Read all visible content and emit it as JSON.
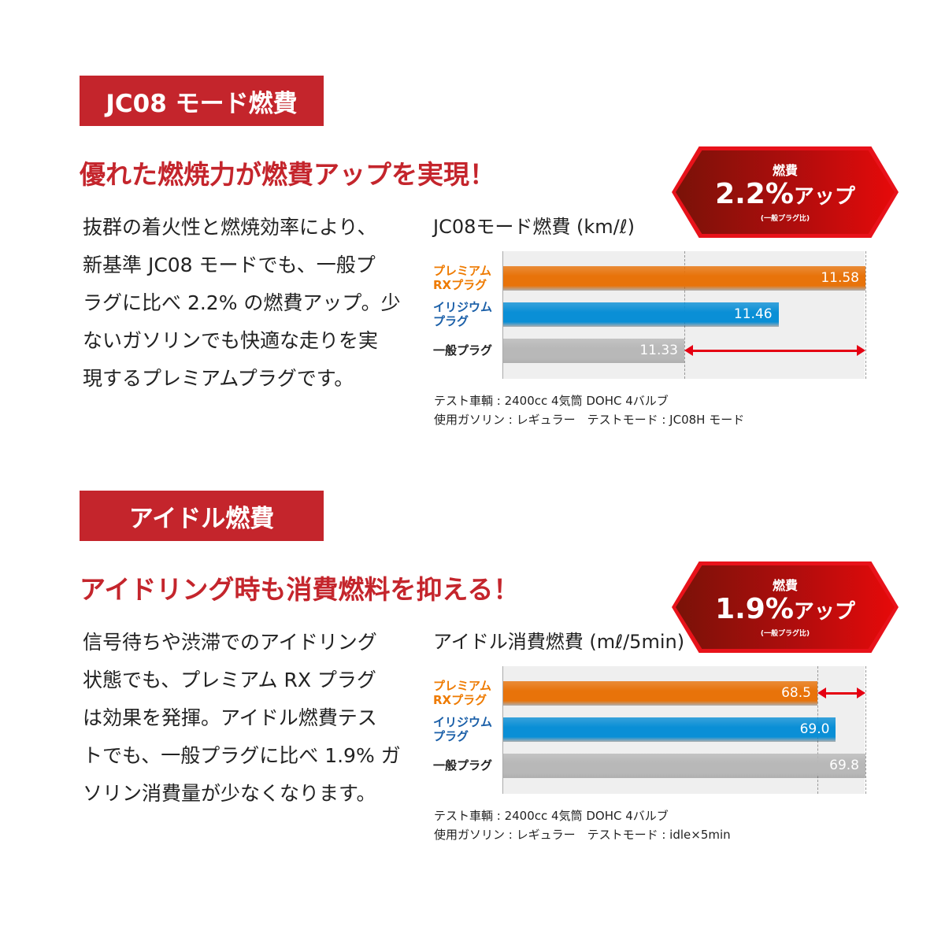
{
  "sections": [
    {
      "tag": "JC08 モード燃費",
      "headline": "優れた燃焼力が燃費アップを実現！",
      "paragraph_lines": [
        "抜群の着火性と燃焼効率により、",
        "新基準 JC08 モードでも、一般プ",
        "ラグに比べ 2.2% の燃費アップ。少",
        "ないガソリンでも快適な走りを実",
        "現するプレミアムプラグです。"
      ],
      "badge": {
        "top": "燃費",
        "value": "2.2%",
        "suffix": "アップ",
        "note": "(一般プラグ比)"
      },
      "notes": [
        "テスト車輌 : 2400cc 4気筒 DOHC 4バルブ",
        "使用ガソリン : レギュラー　テストモード : JC08H モード"
      ]
    },
    {
      "tag": "アイドル燃費",
      "headline": "アイドリング時も消費燃料を抑える！",
      "paragraph_lines": [
        "信号待ちや渋滞でのアイドリング",
        "状態でも、プレミアム RX プラグ",
        "は効果を発揮。アイドル燃費テス",
        "トでも、一般プラグに比べ 1.9% ガ",
        "ソリン消費量が少なくなります。"
      ],
      "badge": {
        "top": "燃費",
        "value": "1.9%",
        "suffix": "アップ",
        "note": "(一般プラグ比)"
      },
      "notes": [
        "テスト車輌 : 2400cc 4気筒 DOHC 4バルブ",
        "使用ガソリン : レギュラー　テストモード : idle×5min"
      ]
    }
  ],
  "chart_data": [
    {
      "type": "bar",
      "orientation": "horizontal",
      "title": "JC08モード燃費 (km/ℓ)",
      "categories": [
        [
          "プレミアム",
          "RXプラグ"
        ],
        [
          "イリジウム",
          "プラグ"
        ],
        [
          "一般プラグ"
        ]
      ],
      "values": [
        11.58,
        11.46,
        11.33
      ],
      "value_labels": [
        "11.58",
        "11.46",
        "11.33"
      ],
      "xlim": [
        11.08,
        11.58
      ],
      "reference": 11.33,
      "arrow": [
        11.33,
        11.58
      ],
      "colors": [
        "#e8730a",
        "#0a8fd6",
        "#b8b8b8"
      ],
      "label_colors": [
        "#ee7a00",
        "#1a5fa8",
        "#222222"
      ]
    },
    {
      "type": "bar",
      "orientation": "horizontal",
      "title": "アイドル消費燃費 (mℓ/5min)",
      "categories": [
        [
          "プレミアム",
          "RXプラグ"
        ],
        [
          "イリジウム",
          "プラグ"
        ],
        [
          "一般プラグ"
        ]
      ],
      "values": [
        68.5,
        69.0,
        69.8
      ],
      "value_labels": [
        "68.5",
        "69.0",
        "69.8"
      ],
      "xlim": [
        60,
        69.8
      ],
      "reference": 68.5,
      "arrow": [
        68.5,
        69.8
      ],
      "colors": [
        "#e8730a",
        "#0a8fd6",
        "#b8b8b8"
      ],
      "label_colors": [
        "#ee7a00",
        "#1a5fa8",
        "#222222"
      ]
    }
  ]
}
